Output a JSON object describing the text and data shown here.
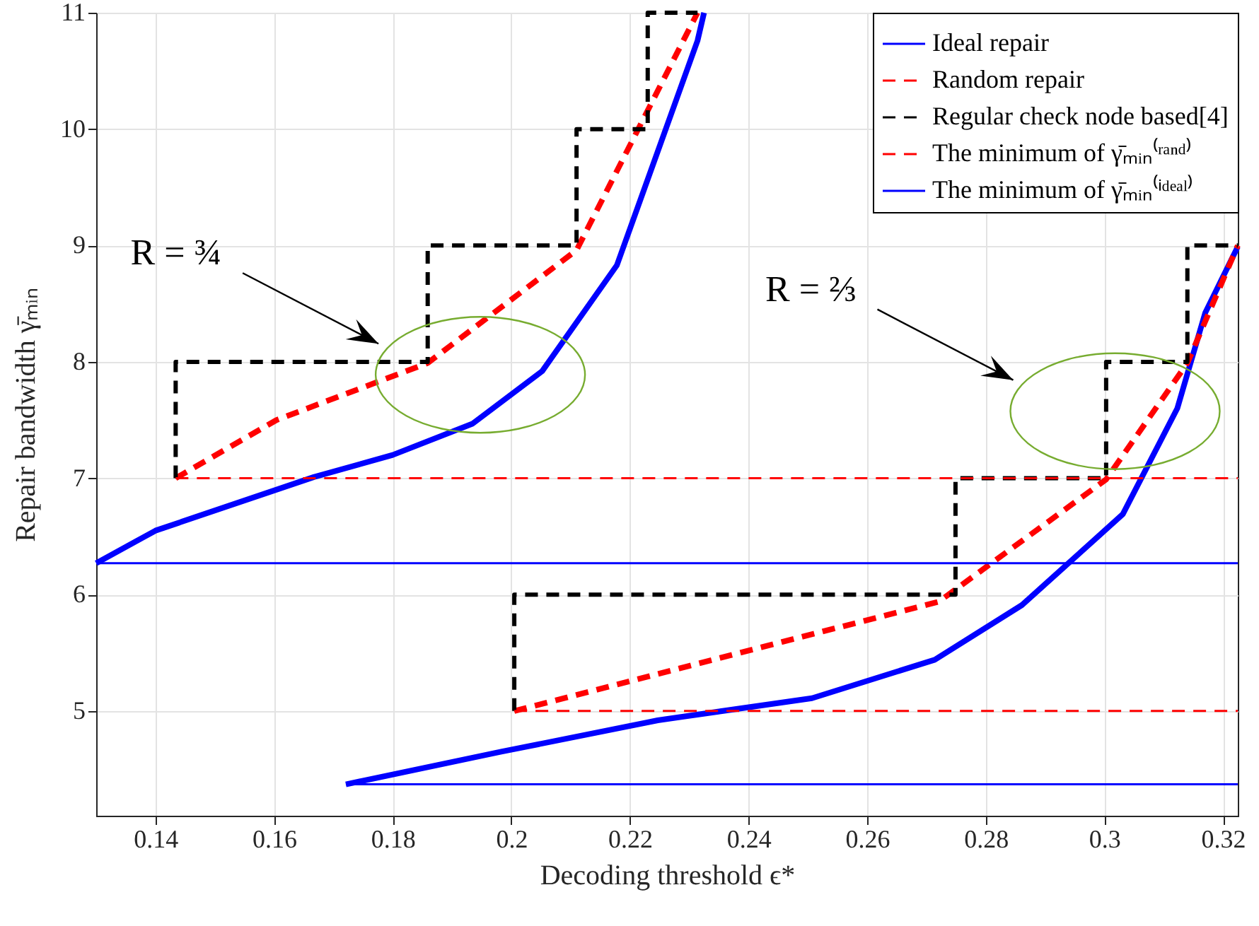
{
  "chart_data": {
    "type": "line",
    "xlabel": "Decoding threshold ϵ*",
    "ylabel": "Repair bandwidth γ̄ₘᵢₙ",
    "xlim": [
      0.13,
      0.3225
    ],
    "xticks": [
      0.14,
      0.16,
      0.18,
      0.2,
      0.22,
      0.24,
      0.26,
      0.28,
      0.3,
      0.32
    ],
    "ylim": [
      4.1,
      11
    ],
    "yticks": [
      5,
      6,
      7,
      8,
      9,
      10,
      11
    ],
    "grid": true,
    "legend": "top right",
    "marker": "none",
    "annotations": [
      "R = ¾",
      "R = ⅔"
    ],
    "series": [
      {
        "name": "Ideal repair",
        "color": "#0000ff",
        "line_style": "solid",
        "x": [
          0.13,
          0.14,
          0.1667,
          0.18,
          0.1935,
          0.2052,
          0.2178,
          0.2314,
          0.2325,
          null,
          0.1721,
          0.1983,
          0.2247,
          0.2507,
          0.2714,
          0.2861,
          0.3031,
          0.3123,
          0.317,
          0.3225
        ],
        "values": [
          6.27,
          6.55,
          7.01,
          7.2,
          7.47,
          7.92,
          8.83,
          10.76,
          11,
          null,
          4.37,
          4.65,
          4.92,
          5.11,
          5.44,
          5.91,
          6.69,
          7.6,
          8.42,
          8.99
        ]
      },
      {
        "name": "Random repair",
        "color": "#ff0000",
        "line_style": "dashed",
        "x": [
          0.1434,
          0.1604,
          0.1859,
          0.211,
          0.2314,
          null,
          0.2005,
          0.2721,
          0.3003,
          0.314,
          0.3225
        ],
        "values": [
          7,
          7.5,
          7.99,
          8.96,
          11,
          null,
          5,
          5.94,
          6.99,
          7.99,
          9.0
        ]
      },
      {
        "name": "Regular check node based[4]",
        "color": "#000000",
        "line_style": "dashed",
        "x": [
          0.1434,
          0.1434,
          0.1859,
          0.1859,
          0.211,
          0.211,
          0.223,
          0.223,
          0.2314,
          null,
          0.2005,
          0.2005,
          0.2749,
          0.2749,
          0.3003,
          0.3003,
          0.314,
          0.314,
          0.3225
        ],
        "values": [
          7,
          8,
          8,
          9,
          9,
          10,
          10,
          11,
          11,
          null,
          5,
          6,
          6,
          7,
          7,
          8,
          8,
          9,
          9
        ]
      },
      {
        "name": "The minimum of γ̄ₘᵢₙ⁽ʳᵃⁿᵈ⁾",
        "color": "#ff0000",
        "line_style": "dashed",
        "x": [
          0.1434,
          0.3225,
          null,
          0.2005,
          0.3225
        ],
        "values": [
          7,
          7,
          null,
          5,
          5
        ]
      },
      {
        "name": "The minimum of γ̄ₘᵢₙ⁽ⁱᵈᵉᵃˡ⁾",
        "color": "#0000ff",
        "line_style": "solid",
        "x": [
          0.13,
          0.3225,
          null,
          0.1721,
          0.3225
        ],
        "values": [
          6.27,
          6.27,
          null,
          4.37,
          4.37
        ]
      }
    ]
  }
}
